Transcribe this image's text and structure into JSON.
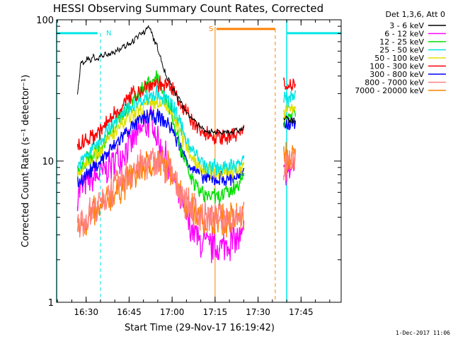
{
  "chart_data": {
    "type": "line",
    "title": "HESSI Observing Summary Count Rates, Corrected",
    "xlabel": "Start Time (29-Nov-17 16:19:42)",
    "ylabel": "Corrected Count Rate (s⁻¹ detector⁻¹)",
    "yscale": "log",
    "xlim": [
      "16:19:42",
      "17:59:00"
    ],
    "ylim": [
      1,
      100
    ],
    "x_ticks": [
      "16:30",
      "16:45",
      "17:00",
      "17:15",
      "17:30",
      "17:45"
    ],
    "y_ticks": [
      "1",
      "10",
      "100"
    ],
    "legend_title": "Det 1,3,6, Att 0",
    "legend_position": "right",
    "timestamp": "1-Dec-2017 11:06",
    "intervals": {
      "night_label": "N",
      "saa_label": "S",
      "night": {
        "start": "16:35",
        "end": "17:40"
      },
      "saa": {
        "start": "17:15",
        "end": "17:36"
      },
      "night2_end": "17:59",
      "colors": {
        "night": "#00e5e5",
        "saa": "#ff8000"
      }
    },
    "series": [
      {
        "name": "3 - 6 keV",
        "color": "#000000",
        "points": [
          [
            "16:27",
            29
          ],
          [
            "16:28",
            48
          ],
          [
            "16:30",
            52
          ],
          [
            "16:35",
            55
          ],
          [
            "16:40",
            60
          ],
          [
            "16:45",
            68
          ],
          [
            "16:50",
            82
          ],
          [
            "16:52",
            88
          ],
          [
            "16:55",
            62
          ],
          [
            "16:58",
            40
          ],
          [
            "17:02",
            28
          ],
          [
            "17:06",
            21
          ],
          [
            "17:10",
            17
          ],
          [
            "17:15",
            16
          ],
          [
            "17:20",
            16
          ],
          [
            "17:25",
            17
          ],
          null,
          [
            "17:39",
            20
          ],
          [
            "17:43",
            19
          ]
        ]
      },
      {
        "name": "6 - 12 keV",
        "color": "#ff00ff",
        "points": [
          [
            "16:27",
            6
          ],
          [
            "16:30",
            7
          ],
          [
            "16:35",
            8
          ],
          [
            "16:40",
            10
          ],
          [
            "16:45",
            13
          ],
          [
            "16:50",
            17
          ],
          [
            "16:53",
            20
          ],
          [
            "16:55",
            14
          ],
          [
            "16:58",
            10
          ],
          [
            "17:02",
            6
          ],
          [
            "17:06",
            3.5
          ],
          [
            "17:10",
            2.6
          ],
          [
            "17:15",
            2.4
          ],
          [
            "17:20",
            2.6
          ],
          [
            "17:25",
            3
          ],
          null,
          [
            "17:39",
            8
          ],
          [
            "17:43",
            9.5
          ]
        ]
      },
      {
        "name": "12 - 25 keV",
        "color": "#00e000",
        "points": [
          [
            "16:27",
            8
          ],
          [
            "16:30",
            10
          ],
          [
            "16:35",
            12
          ],
          [
            "16:40",
            18
          ],
          [
            "16:45",
            25
          ],
          [
            "16:50",
            33
          ],
          [
            "16:55",
            40
          ],
          [
            "16:57",
            30
          ],
          [
            "17:00",
            22
          ],
          [
            "17:03",
            12
          ],
          [
            "17:06",
            8
          ],
          [
            "17:10",
            6
          ],
          [
            "17:15",
            5.5
          ],
          [
            "17:20",
            6
          ],
          [
            "17:25",
            7.5
          ],
          null,
          [
            "17:39",
            20
          ],
          [
            "17:43",
            22
          ]
        ]
      },
      {
        "name": "25 - 50 keV",
        "color": "#00e5e5",
        "points": [
          [
            "16:27",
            9
          ],
          [
            "16:30",
            11
          ],
          [
            "16:35",
            14
          ],
          [
            "16:40",
            19
          ],
          [
            "16:45",
            24
          ],
          [
            "16:50",
            28
          ],
          [
            "16:55",
            30
          ],
          [
            "17:00",
            25
          ],
          [
            "17:04",
            16
          ],
          [
            "17:08",
            11
          ],
          [
            "17:12",
            9
          ],
          [
            "17:16",
            9
          ],
          [
            "17:20",
            9
          ],
          [
            "17:25",
            10
          ],
          null,
          [
            "17:39",
            27
          ],
          [
            "17:43",
            30
          ]
        ]
      },
      {
        "name": "50 - 100 keV",
        "color": "#e0e000",
        "points": [
          [
            "16:27",
            8
          ],
          [
            "16:30",
            10
          ],
          [
            "16:35",
            12
          ],
          [
            "16:40",
            16
          ],
          [
            "16:45",
            20
          ],
          [
            "16:50",
            24
          ],
          [
            "16:55",
            26
          ],
          [
            "17:00",
            22
          ],
          [
            "17:04",
            14
          ],
          [
            "17:08",
            10
          ],
          [
            "17:12",
            8.5
          ],
          [
            "17:16",
            8.5
          ],
          [
            "17:20",
            8.5
          ],
          [
            "17:25",
            9
          ],
          null,
          [
            "17:39",
            22
          ],
          [
            "17:43",
            24
          ]
        ]
      },
      {
        "name": "100 - 300 keV",
        "color": "#ff0000",
        "points": [
          [
            "16:27",
            13
          ],
          [
            "16:30",
            14
          ],
          [
            "16:35",
            16
          ],
          [
            "16:40",
            22
          ],
          [
            "16:45",
            28
          ],
          [
            "16:50",
            33
          ],
          [
            "16:55",
            36
          ],
          [
            "17:00",
            32
          ],
          [
            "17:03",
            26
          ],
          [
            "17:06",
            20
          ],
          [
            "17:10",
            16
          ],
          [
            "17:15",
            15
          ],
          [
            "17:20",
            15
          ],
          [
            "17:25",
            16
          ],
          null,
          [
            "17:39",
            35
          ],
          [
            "17:43",
            36
          ]
        ]
      },
      {
        "name": "300 - 800 keV",
        "color": "#0000ff",
        "points": [
          [
            "16:27",
            7
          ],
          [
            "16:30",
            8
          ],
          [
            "16:35",
            10
          ],
          [
            "16:40",
            13
          ],
          [
            "16:45",
            17
          ],
          [
            "16:50",
            20
          ],
          [
            "16:55",
            21
          ],
          [
            "17:00",
            17
          ],
          [
            "17:04",
            11
          ],
          [
            "17:08",
            8.5
          ],
          [
            "17:12",
            7.5
          ],
          [
            "17:16",
            7.5
          ],
          [
            "17:20",
            7.5
          ],
          [
            "17:25",
            8
          ],
          null,
          [
            "17:39",
            18
          ],
          [
            "17:43",
            19
          ]
        ]
      },
      {
        "name": "800 - 7000 keV",
        "color": "#ff8080",
        "points": [
          [
            "16:27",
            3.5
          ],
          [
            "16:30",
            4
          ],
          [
            "16:35",
            5
          ],
          [
            "16:40",
            6.5
          ],
          [
            "16:45",
            8
          ],
          [
            "16:50",
            9.5
          ],
          [
            "16:55",
            10
          ],
          [
            "17:00",
            8
          ],
          [
            "17:04",
            5.5
          ],
          [
            "17:08",
            4.5
          ],
          [
            "17:12",
            4
          ],
          [
            "17:16",
            4
          ],
          [
            "17:20",
            4
          ],
          [
            "17:25",
            4.5
          ],
          null,
          [
            "17:39",
            9
          ],
          [
            "17:43",
            10
          ]
        ]
      },
      {
        "name": "7000 - 20000 keV",
        "color": "#ff8000",
        "points": [
          [
            "16:27",
            3.5
          ],
          [
            "16:30",
            3.8
          ],
          [
            "16:35",
            4.5
          ],
          [
            "16:40",
            6
          ],
          [
            "16:45",
            7.5
          ],
          [
            "16:50",
            9
          ],
          [
            "16:55",
            10
          ],
          [
            "17:00",
            8.5
          ],
          [
            "17:04",
            5.5
          ],
          [
            "17:08",
            4.2
          ],
          [
            "17:12",
            3.8
          ],
          [
            "17:16",
            3.8
          ],
          [
            "17:20",
            3.8
          ],
          [
            "17:25",
            4
          ],
          null,
          [
            "17:39",
            10
          ],
          [
            "17:43",
            11
          ]
        ]
      }
    ]
  }
}
